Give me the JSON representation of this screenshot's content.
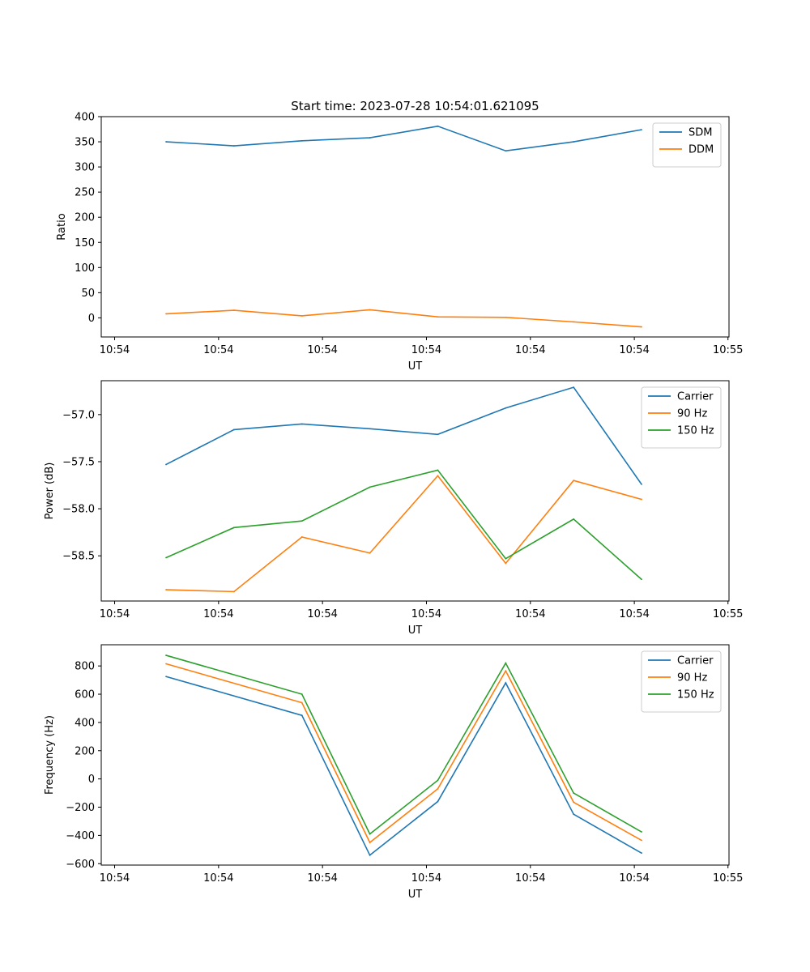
{
  "figure_title": "Start time: 2023-07-28 10:54:01.621095",
  "colors": {
    "blue": "#1f77b4",
    "orange": "#ff7f0e",
    "green": "#2ca02c"
  },
  "chart_data": [
    {
      "type": "line",
      "id": "ratio",
      "title": "Start time: 2023-07-28 10:54:01.621095",
      "xlabel": "UT",
      "ylabel": "Ratio",
      "xlim": [
        0.3,
        6.4
      ],
      "ylim": [
        -38,
        400
      ],
      "xticks": [
        0.43,
        1.44,
        2.45,
        3.46,
        4.47,
        5.48,
        6.39
      ],
      "xtick_labels": [
        "10:54",
        "10:54",
        "10:54",
        "10:54",
        "10:54",
        "10:54",
        "10:55"
      ],
      "yticks": [
        0,
        50,
        100,
        150,
        200,
        250,
        300,
        350,
        400
      ],
      "ytick_labels": [
        "0",
        "50",
        "100",
        "150",
        "200",
        "250",
        "300",
        "350",
        "400"
      ],
      "x": [
        0.93,
        1.59,
        2.25,
        2.91,
        3.57,
        4.23,
        4.89,
        5.55
      ],
      "series": [
        {
          "name": "SDM",
          "color": "#1f77b4",
          "values": [
            350,
            342,
            352,
            358,
            381,
            332,
            350,
            374
          ]
        },
        {
          "name": "DDM",
          "color": "#ff7f0e",
          "values": [
            8,
            15,
            4,
            16,
            2,
            1,
            -8,
            -18
          ]
        }
      ]
    },
    {
      "type": "line",
      "id": "power",
      "title": "",
      "xlabel": "UT",
      "ylabel": "Power (dB)",
      "xlim": [
        0.3,
        6.4
      ],
      "ylim": [
        -58.98,
        -56.64
      ],
      "xticks": [
        0.43,
        1.44,
        2.45,
        3.46,
        4.47,
        5.48,
        6.39
      ],
      "xtick_labels": [
        "10:54",
        "10:54",
        "10:54",
        "10:54",
        "10:54",
        "10:54",
        "10:55"
      ],
      "yticks": [
        -58.5,
        -58.0,
        -57.5,
        -57.0
      ],
      "ytick_labels": [
        "−58.5",
        "−58.0",
        "−57.5",
        "−57.0"
      ],
      "x": [
        0.93,
        1.59,
        2.25,
        2.91,
        3.57,
        4.23,
        4.89,
        5.55
      ],
      "series": [
        {
          "name": "Carrier",
          "color": "#1f77b4",
          "values": [
            -57.53,
            -57.16,
            -57.1,
            -57.15,
            -57.21,
            -56.93,
            -56.71,
            -57.74
          ]
        },
        {
          "name": "90 Hz",
          "color": "#ff7f0e",
          "values": [
            -58.86,
            -58.88,
            -58.3,
            -58.47,
            -57.65,
            -58.58,
            -57.7,
            -57.9
          ]
        },
        {
          "name": "150 Hz",
          "color": "#2ca02c",
          "values": [
            -58.52,
            -58.2,
            -58.13,
            -57.77,
            -57.59,
            -58.53,
            -58.11,
            -58.75
          ]
        }
      ]
    },
    {
      "type": "line",
      "id": "frequency",
      "title": "",
      "xlabel": "UT",
      "ylabel": "Frequency (Hz)",
      "xlim": [
        0.3,
        6.4
      ],
      "ylim": [
        -610,
        950
      ],
      "xticks": [
        0.43,
        1.44,
        2.45,
        3.46,
        4.47,
        5.48,
        6.39
      ],
      "xtick_labels": [
        "10:54",
        "10:54",
        "10:54",
        "10:54",
        "10:54",
        "10:54",
        "10:55"
      ],
      "yticks": [
        -600,
        -400,
        -200,
        0,
        200,
        400,
        600,
        800
      ],
      "ytick_labels": [
        "−600",
        "−400",
        "−200",
        "0",
        "200",
        "400",
        "600",
        "800"
      ],
      "x": [
        0.93,
        2.25,
        2.91,
        3.57,
        4.23,
        4.89,
        5.55
      ],
      "series": [
        {
          "name": "Carrier",
          "color": "#1f77b4",
          "values": [
            725,
            450,
            -540,
            -160,
            680,
            -250,
            -525
          ]
        },
        {
          "name": "90 Hz",
          "color": "#ff7f0e",
          "values": [
            815,
            540,
            -450,
            -70,
            765,
            -165,
            -435
          ]
        },
        {
          "name": "150 Hz",
          "color": "#2ca02c",
          "values": [
            875,
            600,
            -390,
            -10,
            820,
            -100,
            -375
          ]
        }
      ]
    }
  ]
}
